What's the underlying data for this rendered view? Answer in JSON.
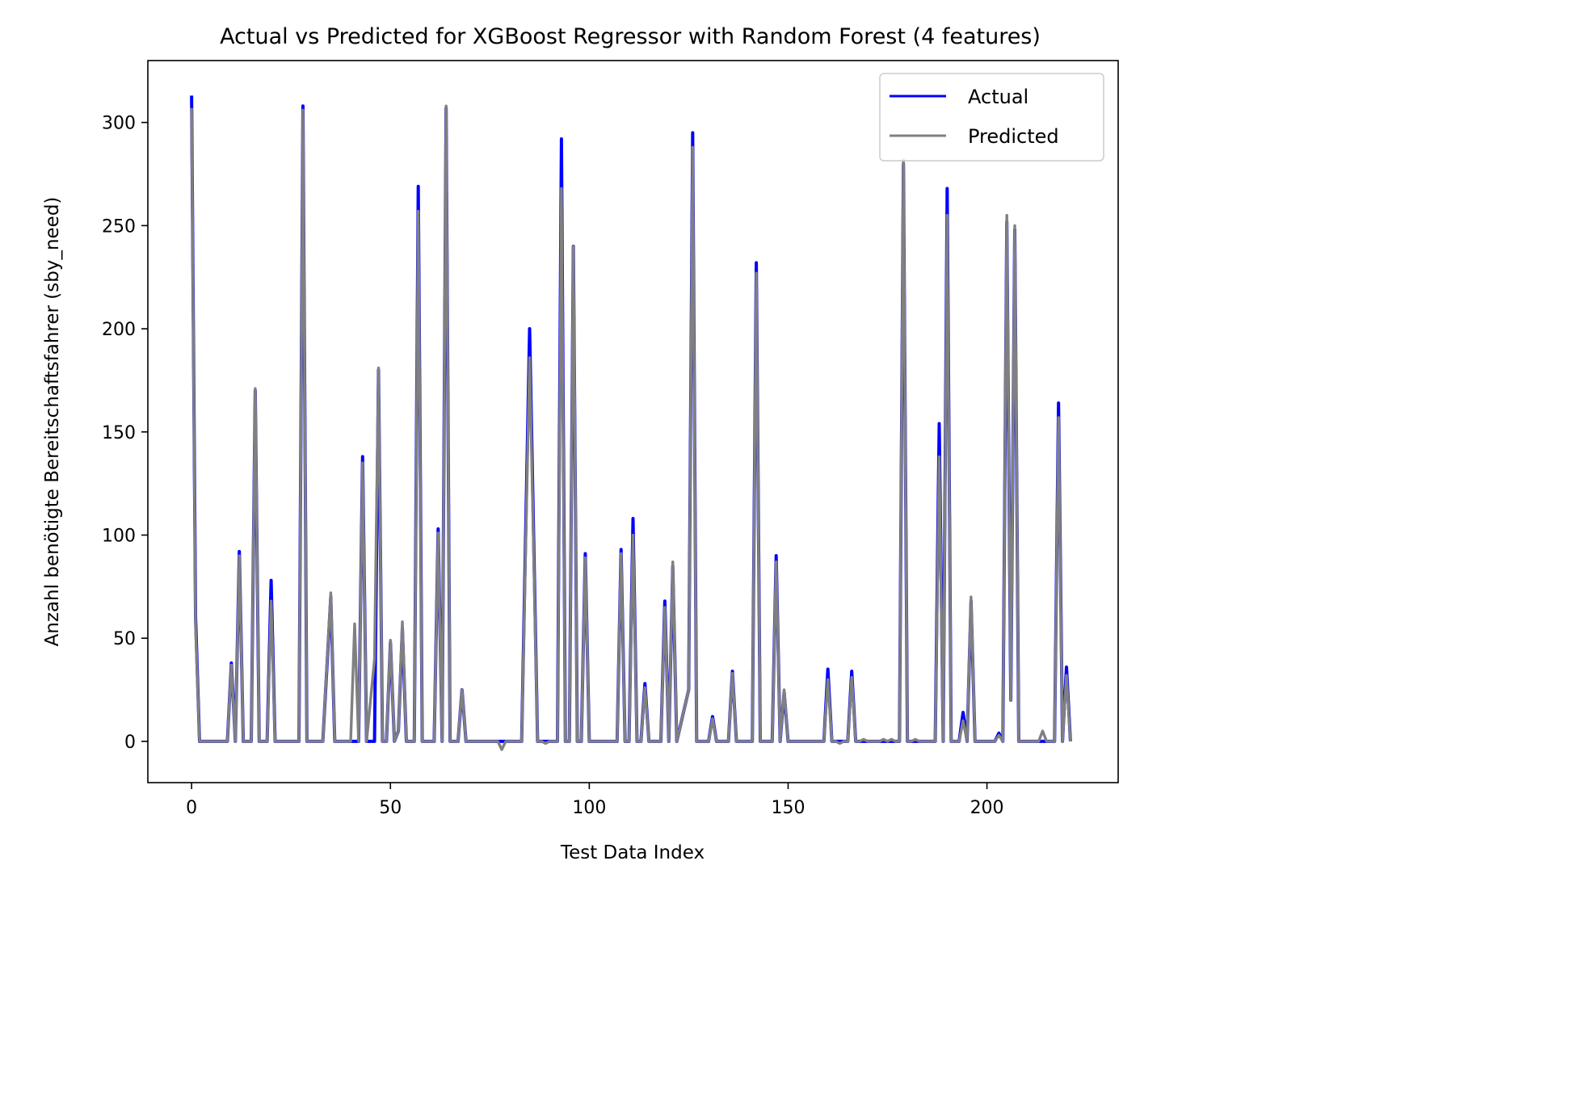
{
  "chart_data": {
    "type": "line",
    "title": "Actual vs Predicted for XGBoost Regressor with Random Forest (4 features)",
    "xlabel": "Test Data Index",
    "ylabel": "Anzahl benötigte Bereitschaftsfahrer (sby_need)",
    "xlim": [
      -11,
      233
    ],
    "ylim": [
      -20,
      330
    ],
    "xticks": [
      0,
      50,
      100,
      150,
      200
    ],
    "yticks": [
      0,
      50,
      100,
      150,
      200,
      250,
      300
    ],
    "legend": {
      "position": "top-right",
      "entries": [
        "Actual",
        "Predicted"
      ]
    },
    "grid": false,
    "series": [
      {
        "name": "Actual",
        "color": "#0000ff",
        "points": [
          [
            0,
            313
          ],
          [
            1,
            60
          ],
          [
            2,
            0
          ],
          [
            9,
            0
          ],
          [
            10,
            38
          ],
          [
            11,
            0
          ],
          [
            12,
            92
          ],
          [
            13,
            0
          ],
          [
            15,
            0
          ],
          [
            16,
            170
          ],
          [
            17,
            0
          ],
          [
            19,
            0
          ],
          [
            20,
            78
          ],
          [
            21,
            0
          ],
          [
            27,
            0
          ],
          [
            28,
            308
          ],
          [
            29,
            0
          ],
          [
            33,
            0
          ],
          [
            35,
            70
          ],
          [
            36,
            0
          ],
          [
            40,
            0
          ],
          [
            42,
            0
          ],
          [
            43,
            138
          ],
          [
            44,
            0
          ],
          [
            46,
            0
          ],
          [
            47,
            180
          ],
          [
            48,
            0
          ],
          [
            49,
            0
          ],
          [
            50,
            48
          ],
          [
            51,
            0
          ],
          [
            52,
            5
          ],
          [
            53,
            55
          ],
          [
            54,
            0
          ],
          [
            56,
            0
          ],
          [
            57,
            269
          ],
          [
            58,
            0
          ],
          [
            61,
            0
          ],
          [
            62,
            103
          ],
          [
            63,
            0
          ],
          [
            64,
            307
          ],
          [
            65,
            0
          ],
          [
            67,
            0
          ],
          [
            68,
            25
          ],
          [
            69,
            0
          ],
          [
            83,
            0
          ],
          [
            85,
            200
          ],
          [
            87,
            0
          ],
          [
            92,
            0
          ],
          [
            93,
            292
          ],
          [
            94,
            0
          ],
          [
            95,
            0
          ],
          [
            96,
            240
          ],
          [
            97,
            0
          ],
          [
            98,
            0
          ],
          [
            99,
            91
          ],
          [
            100,
            0
          ],
          [
            107,
            0
          ],
          [
            108,
            93
          ],
          [
            109,
            0
          ],
          [
            110,
            0
          ],
          [
            111,
            108
          ],
          [
            112,
            0
          ],
          [
            113,
            0
          ],
          [
            114,
            28
          ],
          [
            115,
            0
          ],
          [
            118,
            0
          ],
          [
            119,
            68
          ],
          [
            120,
            0
          ],
          [
            121,
            85
          ],
          [
            122,
            0
          ],
          [
            125,
            25
          ],
          [
            126,
            295
          ],
          [
            127,
            0
          ],
          [
            130,
            0
          ],
          [
            131,
            12
          ],
          [
            132,
            0
          ],
          [
            135,
            0
          ],
          [
            136,
            34
          ],
          [
            137,
            0
          ],
          [
            141,
            0
          ],
          [
            142,
            232
          ],
          [
            143,
            0
          ],
          [
            146,
            0
          ],
          [
            147,
            90
          ],
          [
            148,
            0
          ],
          [
            149,
            24
          ],
          [
            150,
            0
          ],
          [
            159,
            0
          ],
          [
            160,
            35
          ],
          [
            161,
            0
          ],
          [
            165,
            0
          ],
          [
            166,
            34
          ],
          [
            167,
            0
          ],
          [
            178,
            0
          ],
          [
            179,
            280
          ],
          [
            180,
            0
          ],
          [
            187,
            0
          ],
          [
            188,
            154
          ],
          [
            189,
            0
          ],
          [
            190,
            268
          ],
          [
            191,
            0
          ],
          [
            193,
            0
          ],
          [
            194,
            14
          ],
          [
            195,
            0
          ],
          [
            196,
            68
          ],
          [
            197,
            0
          ],
          [
            202,
            0
          ],
          [
            203,
            4
          ],
          [
            204,
            0
          ],
          [
            205,
            252
          ],
          [
            206,
            20
          ],
          [
            207,
            248
          ],
          [
            208,
            0
          ],
          [
            214,
            0
          ],
          [
            217,
            0
          ],
          [
            218,
            164
          ],
          [
            219,
            0
          ],
          [
            220,
            36
          ],
          [
            221,
            0
          ]
        ]
      },
      {
        "name": "Predicted",
        "color": "#808080",
        "points": [
          [
            0,
            307
          ],
          [
            1,
            55
          ],
          [
            2,
            0
          ],
          [
            9,
            0
          ],
          [
            10,
            37
          ],
          [
            11,
            0
          ],
          [
            12,
            90
          ],
          [
            13,
            0
          ],
          [
            15,
            0
          ],
          [
            16,
            171
          ],
          [
            17,
            0
          ],
          [
            19,
            0
          ],
          [
            20,
            68
          ],
          [
            21,
            0
          ],
          [
            27,
            0
          ],
          [
            28,
            306
          ],
          [
            29,
            0
          ],
          [
            33,
            0
          ],
          [
            35,
            72
          ],
          [
            36,
            0
          ],
          [
            40,
            0
          ],
          [
            41,
            57
          ],
          [
            42,
            0
          ],
          [
            43,
            135
          ],
          [
            44,
            0
          ],
          [
            46,
            40
          ],
          [
            47,
            181
          ],
          [
            48,
            0
          ],
          [
            49,
            0
          ],
          [
            50,
            49
          ],
          [
            51,
            0
          ],
          [
            52,
            5
          ],
          [
            53,
            58
          ],
          [
            54,
            0
          ],
          [
            56,
            0
          ],
          [
            57,
            257
          ],
          [
            58,
            0
          ],
          [
            61,
            0
          ],
          [
            62,
            101
          ],
          [
            63,
            0
          ],
          [
            64,
            308
          ],
          [
            65,
            0
          ],
          [
            67,
            0
          ],
          [
            68,
            25
          ],
          [
            69,
            0
          ],
          [
            70,
            0
          ],
          [
            77,
            0
          ],
          [
            78,
            -4
          ],
          [
            79,
            0
          ],
          [
            83,
            0
          ],
          [
            85,
            186
          ],
          [
            87,
            0
          ],
          [
            88,
            0
          ],
          [
            89,
            -1
          ],
          [
            90,
            0
          ],
          [
            92,
            0
          ],
          [
            93,
            268
          ],
          [
            94,
            0
          ],
          [
            95,
            0
          ],
          [
            96,
            240
          ],
          [
            97,
            0
          ],
          [
            98,
            0
          ],
          [
            99,
            89
          ],
          [
            100,
            0
          ],
          [
            107,
            0
          ],
          [
            108,
            91
          ],
          [
            109,
            0
          ],
          [
            110,
            0
          ],
          [
            111,
            100
          ],
          [
            112,
            0
          ],
          [
            113,
            0
          ],
          [
            114,
            26
          ],
          [
            115,
            0
          ],
          [
            118,
            0
          ],
          [
            119,
            65
          ],
          [
            120,
            0
          ],
          [
            121,
            87
          ],
          [
            122,
            0
          ],
          [
            125,
            25
          ],
          [
            126,
            288
          ],
          [
            127,
            0
          ],
          [
            130,
            0
          ],
          [
            131,
            11
          ],
          [
            132,
            0
          ],
          [
            135,
            0
          ],
          [
            136,
            33
          ],
          [
            137,
            0
          ],
          [
            141,
            0
          ],
          [
            142,
            227
          ],
          [
            143,
            0
          ],
          [
            146,
            0
          ],
          [
            147,
            87
          ],
          [
            148,
            0
          ],
          [
            149,
            25
          ],
          [
            150,
            0
          ],
          [
            159,
            0
          ],
          [
            160,
            30
          ],
          [
            161,
            0
          ],
          [
            162,
            0
          ],
          [
            163,
            -1
          ],
          [
            164,
            0
          ],
          [
            165,
            0
          ],
          [
            166,
            31
          ],
          [
            167,
            0
          ],
          [
            168,
            0
          ],
          [
            169,
            1
          ],
          [
            170,
            0
          ],
          [
            173,
            0
          ],
          [
            174,
            1
          ],
          [
            175,
            0
          ],
          [
            176,
            1
          ],
          [
            177,
            0
          ],
          [
            178,
            0
          ],
          [
            179,
            282
          ],
          [
            180,
            0
          ],
          [
            181,
            0
          ],
          [
            182,
            1
          ],
          [
            183,
            0
          ],
          [
            187,
            0
          ],
          [
            188,
            138
          ],
          [
            189,
            0
          ],
          [
            190,
            255
          ],
          [
            191,
            0
          ],
          [
            193,
            0
          ],
          [
            194,
            10
          ],
          [
            195,
            0
          ],
          [
            196,
            70
          ],
          [
            197,
            0
          ],
          [
            202,
            0
          ],
          [
            203,
            3
          ],
          [
            204,
            0
          ],
          [
            205,
            255
          ],
          [
            206,
            20
          ],
          [
            207,
            250
          ],
          [
            208,
            0
          ],
          [
            213,
            0
          ],
          [
            214,
            5
          ],
          [
            215,
            0
          ],
          [
            217,
            0
          ],
          [
            218,
            157
          ],
          [
            219,
            0
          ],
          [
            220,
            32
          ],
          [
            221,
            0
          ]
        ]
      }
    ]
  }
}
